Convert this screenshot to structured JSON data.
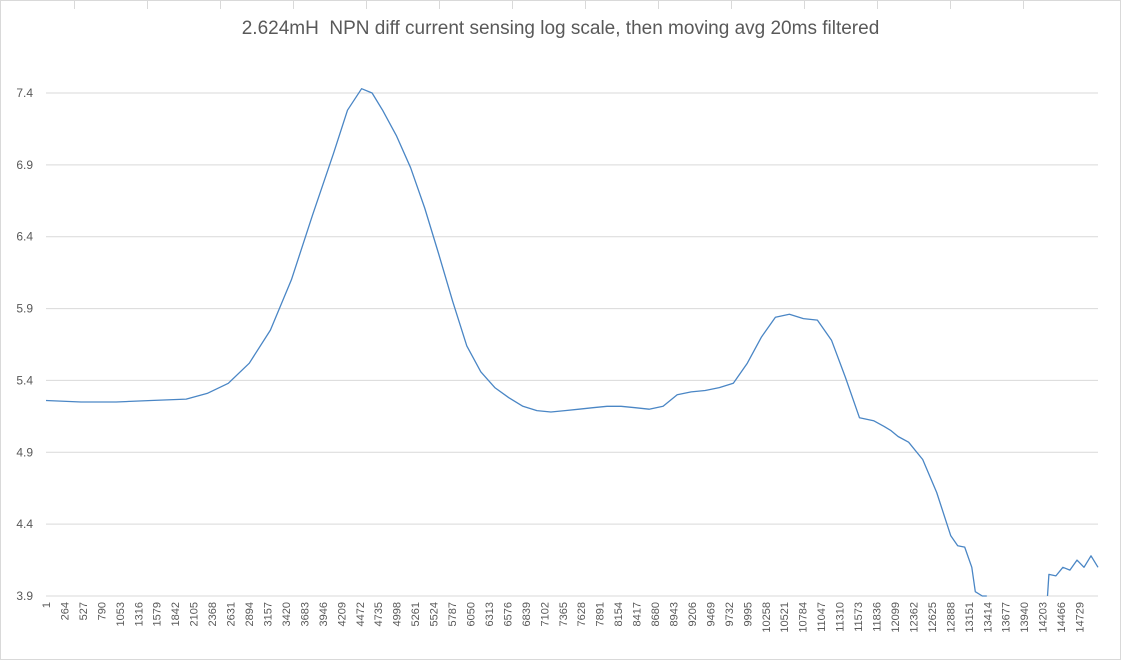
{
  "chart_data": {
    "type": "line",
    "title": "2.624mH  NPN diff current sensing log scale, then moving avg 20ms filtered",
    "xlabel": "",
    "ylabel": "",
    "ylim": [
      3.9,
      7.4
    ],
    "xlim": [
      1,
      15000
    ],
    "grid": true,
    "legend": "none",
    "line_color": "#4a86c5",
    "grid_color": "#d9d9d9",
    "y_ticks": [
      "3.9",
      "4.4",
      "4.9",
      "5.4",
      "5.9",
      "6.4",
      "6.9",
      "7.4"
    ],
    "x_ticks": [
      "1",
      "264",
      "527",
      "790",
      "1053",
      "1316",
      "1579",
      "1842",
      "2105",
      "2368",
      "2631",
      "2894",
      "3157",
      "3420",
      "3683",
      "3946",
      "4209",
      "4472",
      "4735",
      "4998",
      "5261",
      "5524",
      "5787",
      "6050",
      "6313",
      "6576",
      "6839",
      "7102",
      "7365",
      "7628",
      "7891",
      "8154",
      "8417",
      "8680",
      "8943",
      "9206",
      "9469",
      "9732",
      "9995",
      "10258",
      "10521",
      "10784",
      "11047",
      "11310",
      "11573",
      "11836",
      "12099",
      "12362",
      "12625",
      "12888",
      "13151",
      "13414",
      "13677",
      "13940",
      "14203",
      "14466",
      "14729"
    ],
    "series": [
      {
        "x": [
          1,
          500,
          1000,
          1500,
          2000,
          2300,
          2600,
          2900,
          3200,
          3500,
          3800,
          4100,
          4300,
          4500,
          4650,
          4800,
          5000,
          5200,
          5400,
          5600,
          5800,
          6000,
          6200,
          6400,
          6600,
          6800,
          7000,
          7200,
          7400,
          7600,
          7800,
          8000,
          8200,
          8400,
          8600,
          8800,
          9000,
          9200,
          9400,
          9600,
          9800,
          10000,
          10200,
          10400,
          10600,
          10800,
          11000,
          11200,
          11400,
          11600,
          11800,
          11950,
          12050,
          12150,
          12300,
          12500,
          12700,
          12900,
          13000,
          13100,
          13200,
          13250,
          13350,
          13400,
          13414,
          14280,
          14300,
          14400,
          14500,
          14600,
          14700,
          14800,
          14900,
          15000
        ],
        "y": [
          5.26,
          5.25,
          5.25,
          5.26,
          5.27,
          5.31,
          5.38,
          5.52,
          5.75,
          6.1,
          6.55,
          6.98,
          7.28,
          7.43,
          7.4,
          7.28,
          7.1,
          6.88,
          6.6,
          6.28,
          5.95,
          5.64,
          5.46,
          5.35,
          5.28,
          5.22,
          5.19,
          5.18,
          5.19,
          5.2,
          5.21,
          5.22,
          5.22,
          5.21,
          5.2,
          5.22,
          5.3,
          5.32,
          5.33,
          5.35,
          5.38,
          5.52,
          5.7,
          5.84,
          5.86,
          5.83,
          5.82,
          5.68,
          5.42,
          5.14,
          5.12,
          5.08,
          5.05,
          5.01,
          4.97,
          4.85,
          4.62,
          4.32,
          4.25,
          4.24,
          4.1,
          3.93,
          3.9,
          3.9,
          3.9,
          3.9,
          4.05,
          4.04,
          4.1,
          4.08,
          4.15,
          4.1,
          4.18,
          4.1
        ]
      }
    ]
  }
}
